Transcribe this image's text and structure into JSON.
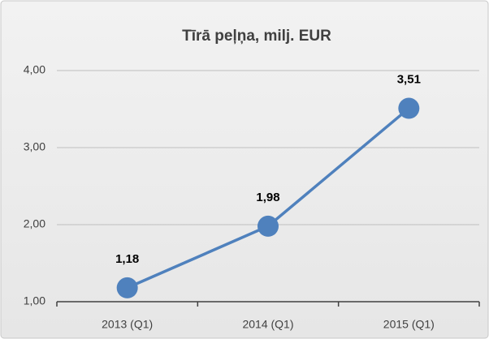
{
  "chart_data": {
    "type": "line",
    "title": "Tīrā peļņa, milj. EUR",
    "categories": [
      "2013 (Q1)",
      "2014 (Q1)",
      "2015 (Q1)"
    ],
    "series": [
      {
        "name": "Tīrā peļņa",
        "color": "#4f81bd",
        "values": [
          1.18,
          1.98,
          3.51
        ],
        "value_labels": [
          "1,18",
          "1,98",
          "3,51"
        ]
      }
    ],
    "ylim": [
      1,
      4
    ],
    "yticks": [
      {
        "value": 1,
        "label": "1,00"
      },
      {
        "value": 2,
        "label": "2,00"
      },
      {
        "value": 3,
        "label": "3,00"
      },
      {
        "value": 4,
        "label": "4,00"
      }
    ],
    "grid": true
  }
}
